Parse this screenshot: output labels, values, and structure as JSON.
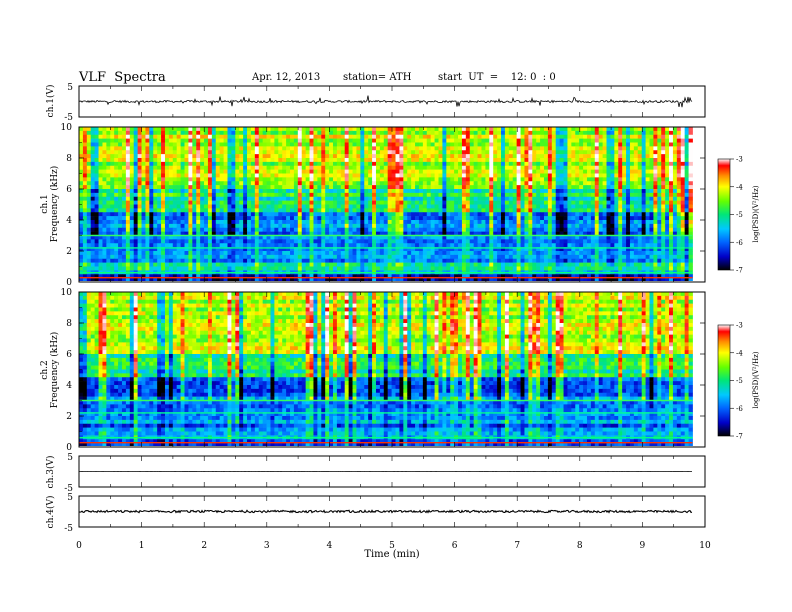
{
  "header": {
    "title": "VLF  Spectra",
    "date": "Apr. 12, 2013",
    "station": "station= ATH",
    "start": "start  UT  =    12: 0  : 0"
  },
  "chart_data": [
    {
      "type": "line",
      "ylabel": "ch.1(V)",
      "ylim": [
        -5,
        5
      ],
      "yticks": [
        "5",
        "-5"
      ],
      "xlim": [
        0,
        10
      ],
      "description_values": {
        "baseline": 0,
        "typical_amplitude": 1.2,
        "max_spike": 4.5
      },
      "data_end_min": 9.8
    },
    {
      "type": "heatmap",
      "channel_label": "ch.1",
      "ylabel": "Frequency  (kHz)",
      "ylim": [
        0,
        10
      ],
      "yticks": [
        "0",
        "2",
        "4",
        "6",
        "8",
        "10"
      ],
      "xlim": [
        0,
        10
      ],
      "data_end_min": 9.8,
      "colorbar": {
        "label": "log(PSD)(V²/Hz)",
        "range": [
          -7,
          -3
        ],
        "ticks": [
          "-3",
          "-4",
          "-5",
          "-6",
          "-7"
        ],
        "colormap": [
          "#000000",
          "#0000c8",
          "#0064ff",
          "#00c8ff",
          "#00e678",
          "#64ff00",
          "#ffff00",
          "#ff8c00",
          "#ff0000",
          "#ffffff"
        ]
      }
    },
    {
      "type": "heatmap",
      "channel_label": "ch.2",
      "ylabel": "Frequency  (kHz)",
      "ylim": [
        0,
        10
      ],
      "yticks": [
        "0",
        "2",
        "4",
        "6",
        "8",
        "10"
      ],
      "xlim": [
        0,
        10
      ],
      "data_end_min": 9.8,
      "colorbar": {
        "label": "log(PSD)(V²/Hz)",
        "range": [
          -7,
          -3
        ],
        "ticks": [
          "-3",
          "-4",
          "-5",
          "-6",
          "-7"
        ]
      }
    },
    {
      "type": "line",
      "ylabel": "ch.3(V)",
      "ylim": [
        -5,
        5
      ],
      "yticks": [
        "5",
        "-5"
      ],
      "xlim": [
        0,
        10
      ],
      "description_values": {
        "level": 0,
        "noise": 0.05
      },
      "data_end_min": 9.8
    },
    {
      "type": "line",
      "ylabel": "ch.4(V)",
      "ylim": [
        -5,
        5
      ],
      "yticks": [
        "5",
        "-5"
      ],
      "xlim": [
        0,
        10
      ],
      "description_values": {
        "level": 0,
        "noise": 0.5
      },
      "data_end_min": 9.8
    }
  ],
  "xaxis": {
    "label": "Time  (min)",
    "ticks": [
      "0",
      "1",
      "2",
      "3",
      "4",
      "5",
      "6",
      "7",
      "8",
      "9",
      "10"
    ]
  }
}
